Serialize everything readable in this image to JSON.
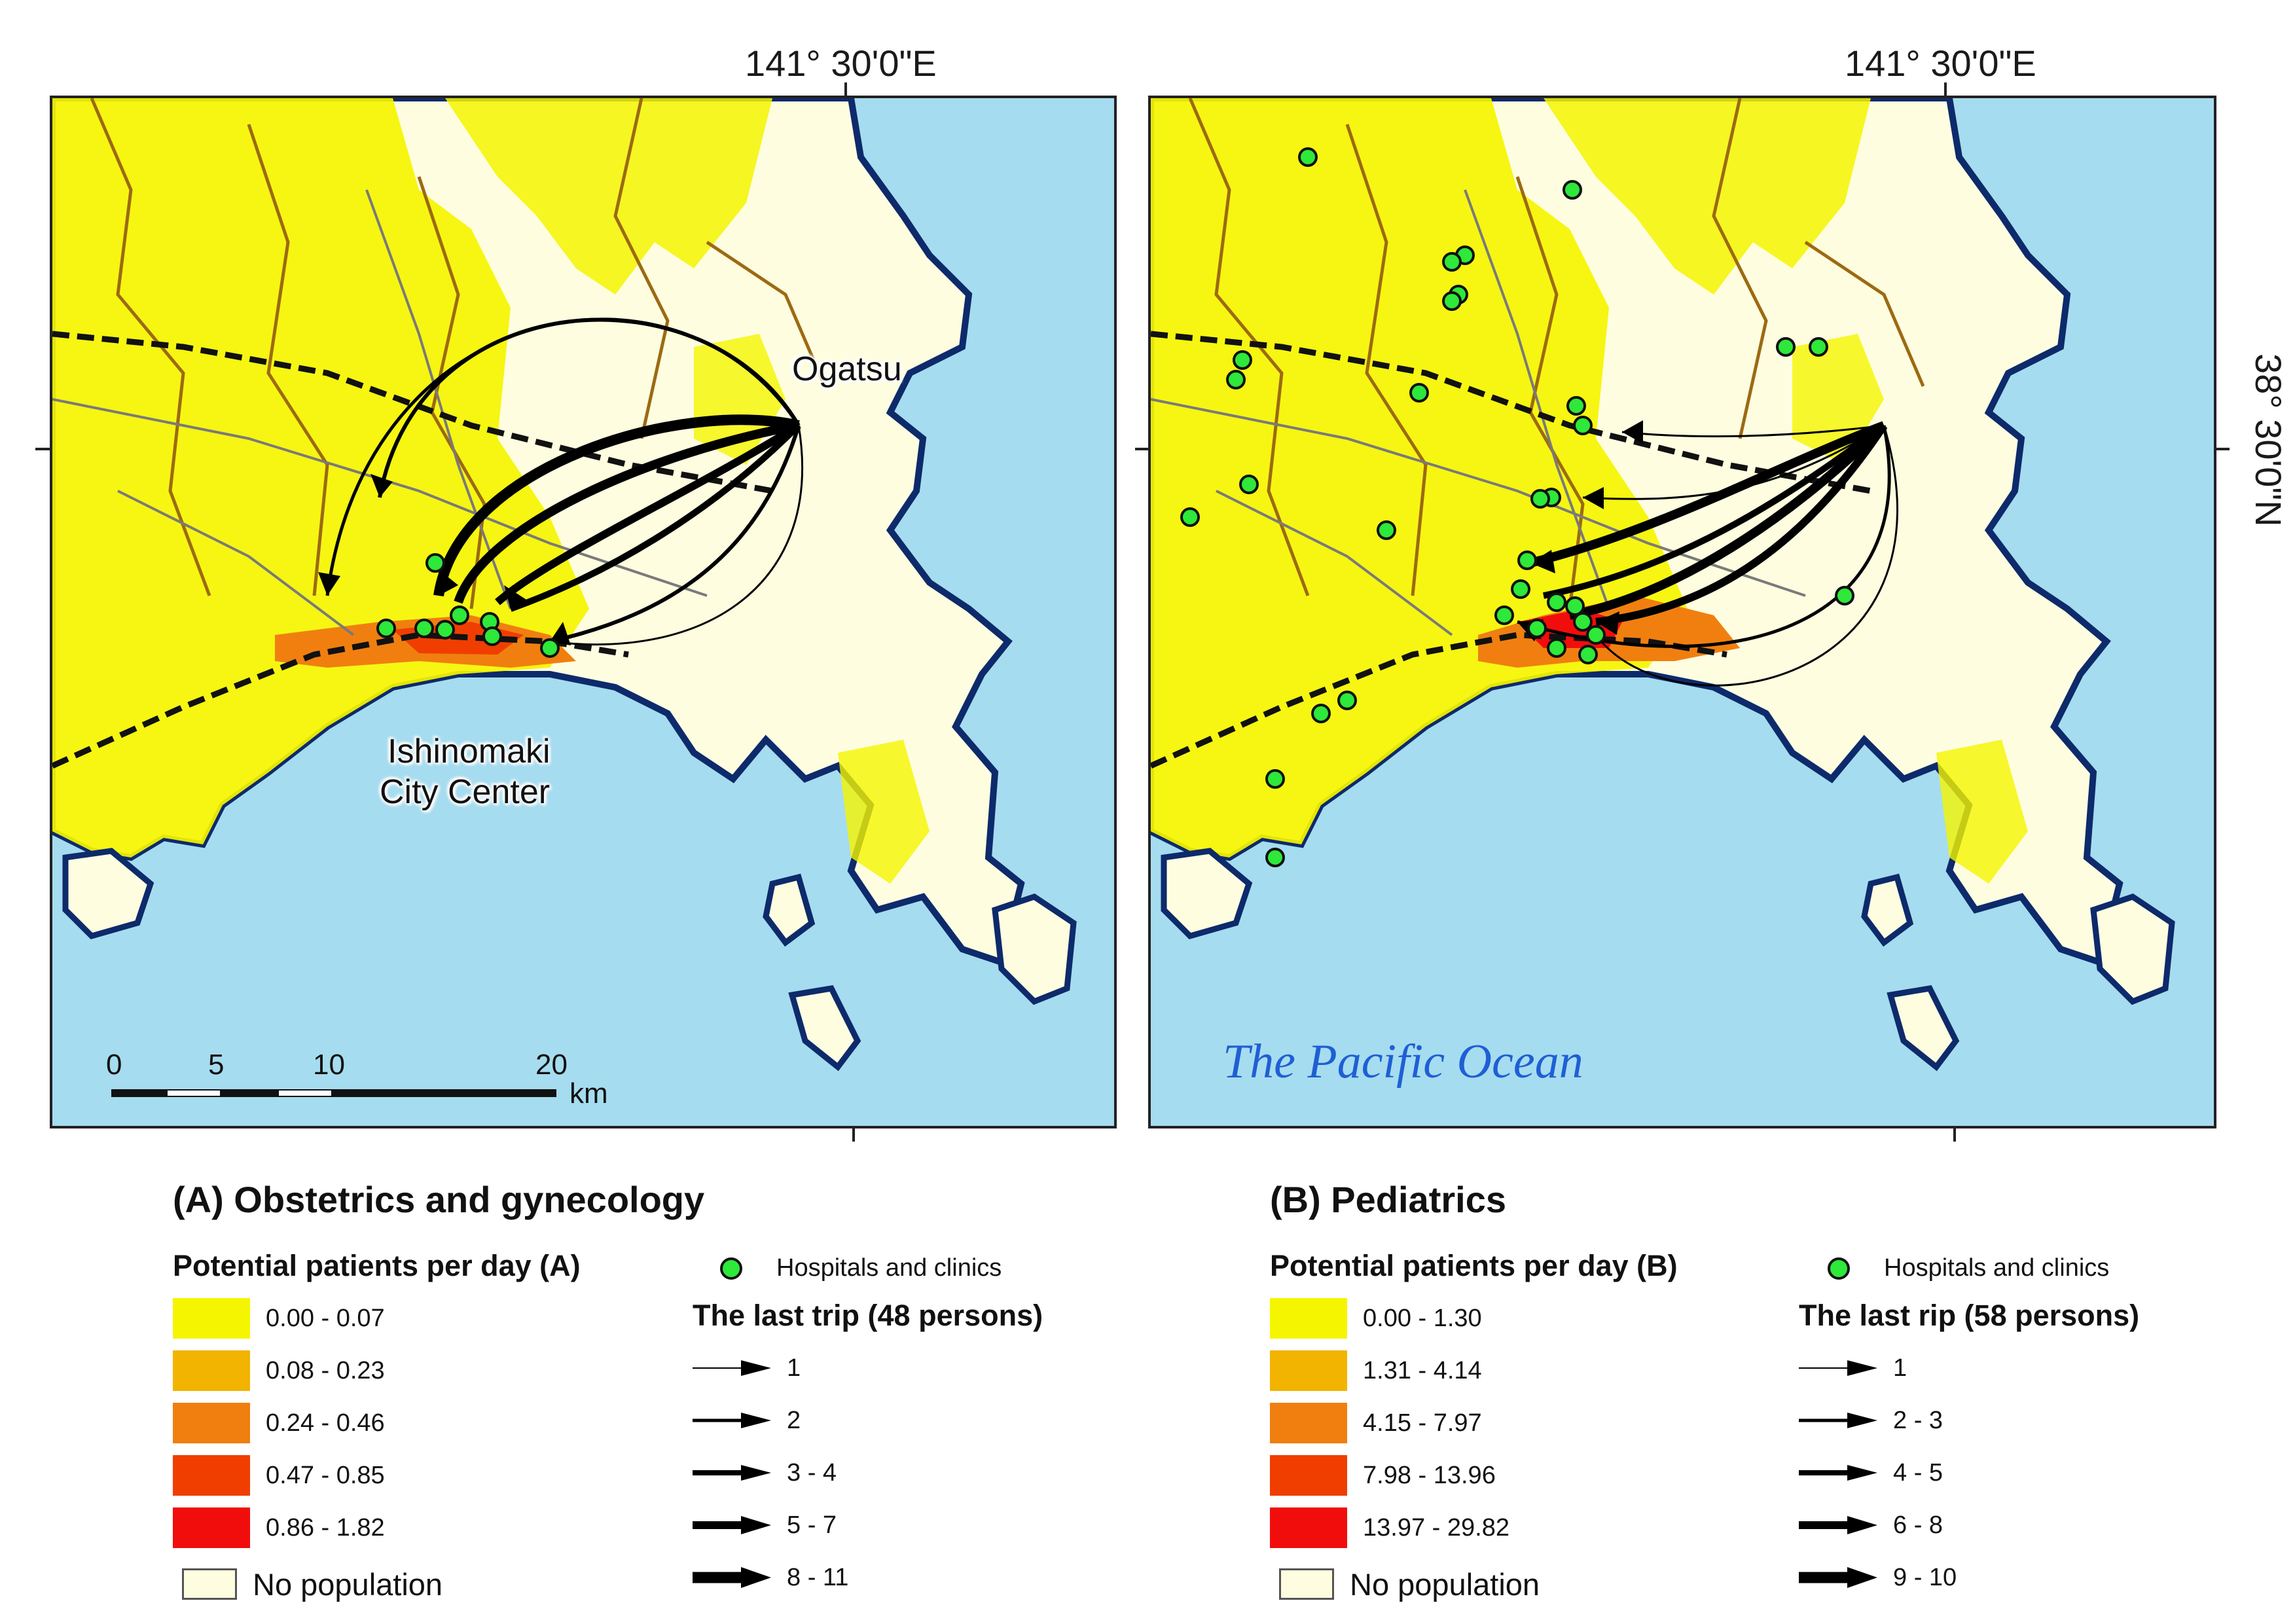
{
  "map_a": {
    "coord_top": "141°   30'0\"E",
    "place_ogatsu": "Ogatsu",
    "place_city_line1": "Ishinomaki",
    "place_city_line2": "City Center",
    "scale_labels": [
      "0",
      "5",
      "10",
      "20"
    ],
    "scale_unit": "km"
  },
  "map_b": {
    "coord_top": "141°   30'0\"E",
    "coord_side": "38°   30'0\"N",
    "ocean_label": "The Pacific Ocean"
  },
  "legend_a": {
    "title": "(A) Obstetrics and  gynecology",
    "density_title": "Potential patients per day (A)",
    "classes": [
      {
        "label": "0.00 - 0.07",
        "color": "#f5f500"
      },
      {
        "label": "0.08 - 0.23",
        "color": "#f2b400"
      },
      {
        "label": "0.24 - 0.46",
        "color": "#f07f10"
      },
      {
        "label": "0.47 - 0.85",
        "color": "#f03e00"
      },
      {
        "label": "0.86 - 1.82",
        "color": "#f20d0d"
      }
    ],
    "no_population": "No population",
    "no_population_color": "#fefde0",
    "hospitals": "Hospitals and clinics",
    "trip_title": "The last trip (48 persons)",
    "trip_classes": [
      "1",
      "2",
      "3 - 4",
      "5 - 7",
      "8 - 11"
    ]
  },
  "legend_b": {
    "title": "(B)  Pediatrics",
    "density_title": "Potential patients per day (B)",
    "classes": [
      {
        "label": "0.00 - 1.30",
        "color": "#f5f500"
      },
      {
        "label": "1.31 - 4.14",
        "color": "#f2b400"
      },
      {
        "label": "4.15 - 7.97",
        "color": "#f07f10"
      },
      {
        "label": "7.98 - 13.96",
        "color": "#f03e00"
      },
      {
        "label": "13.97 - 29.82",
        "color": "#f20d0d"
      }
    ],
    "no_population": "No population",
    "no_population_color": "#fefde0",
    "hospitals": "Hospitals and clinics",
    "trip_title": "The last rip (58 persons)",
    "trip_classes": [
      "1",
      "2 - 3",
      "4 - 5",
      "6 - 8",
      "9 - 10"
    ]
  },
  "colors": {
    "sea": "#a6dcef",
    "coast": "#0d2a6b",
    "hospital": "#2ee83a",
    "admin_boundary": "#9c6a12"
  }
}
